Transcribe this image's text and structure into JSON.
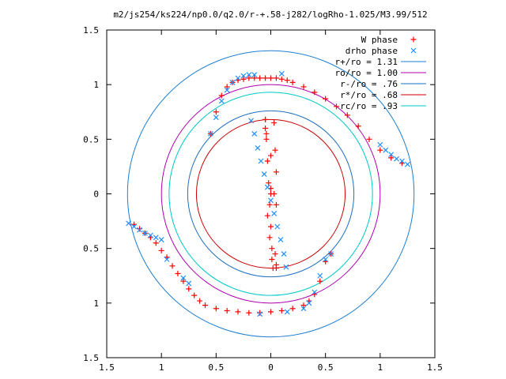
{
  "chart_data": {
    "type": "scatter",
    "title": "m2/js254/ks224/np0.0/q2.0/r-+.58-j282/logRho-1.025/M3.99/512",
    "xlim": [
      -1.5,
      1.5
    ],
    "ylim": [
      -1.5,
      1.5
    ],
    "xticks": [
      -1.5,
      -1,
      -0.5,
      0,
      0.5,
      1,
      1.5
    ],
    "yticks": [
      -1.5,
      -1,
      -0.5,
      0,
      0.5,
      1,
      1.5
    ],
    "xtick_labels": [
      "1.5",
      "1",
      "0.5",
      "0",
      "0.5",
      "1",
      "1.5"
    ],
    "ytick_labels": [
      "1.5",
      "1",
      "0.5",
      "0",
      "0.5",
      "1",
      "1.5"
    ],
    "grid": false,
    "legend_position": "top-right",
    "series": [
      {
        "name": "W phase",
        "marker": "plus",
        "color": "#ff0000",
        "x": [
          -0.05,
          -0.04,
          -0.03,
          -0.02,
          -0.01,
          0.0,
          0.01,
          0.02,
          0.03,
          0.04,
          0.05,
          -0.03,
          -0.01,
          0.01,
          0.03,
          0.05,
          -0.05,
          0.0,
          0.05,
          -0.04,
          0.04,
          -0.05,
          0.0,
          0.05,
          0.0,
          -0.55,
          -0.5,
          -0.45,
          -0.4,
          -0.35,
          -0.3,
          -0.25,
          -0.2,
          -0.15,
          -0.1,
          -0.05,
          0.0,
          0.05,
          0.1,
          0.15,
          0.2,
          0.3,
          0.4,
          0.5,
          0.6,
          0.7,
          0.8,
          0.9,
          1.0,
          1.1,
          1.2,
          -1.25,
          -1.2,
          -1.15,
          -1.1,
          -1.05,
          -1.0,
          -0.95,
          -0.9,
          -0.85,
          -0.8,
          -0.75,
          -0.7,
          -0.65,
          -0.6,
          -0.5,
          -0.4,
          -0.3,
          -0.2,
          -0.1,
          0.0,
          0.1,
          0.2,
          0.3,
          0.35,
          0.4,
          0.45,
          0.5,
          0.55
        ],
        "y": [
          0.68,
          0.5,
          0.3,
          0.1,
          -0.1,
          -0.3,
          -0.5,
          -0.68,
          0.65,
          0.4,
          0.2,
          -0.2,
          -0.4,
          -0.6,
          0.0,
          -0.1,
          0.6,
          0.05,
          -0.68,
          0.55,
          -0.55,
          0.68,
          0.0,
          -0.65,
          0.35,
          0.55,
          0.75,
          0.9,
          0.98,
          1.02,
          1.04,
          1.05,
          1.06,
          1.06,
          1.06,
          1.06,
          1.06,
          1.06,
          1.05,
          1.04,
          1.02,
          0.98,
          0.93,
          0.87,
          0.8,
          0.72,
          0.62,
          0.5,
          0.4,
          0.33,
          0.28,
          -0.28,
          -0.32,
          -0.36,
          -0.4,
          -0.45,
          -0.52,
          -0.58,
          -0.66,
          -0.73,
          -0.8,
          -0.87,
          -0.93,
          -0.98,
          -1.02,
          -1.05,
          -1.07,
          -1.08,
          -1.09,
          -1.09,
          -1.08,
          -1.07,
          -1.05,
          -1.02,
          -0.98,
          -0.92,
          -0.8,
          -0.62,
          -0.55
        ]
      },
      {
        "name": "drho phase",
        "marker": "cross",
        "color": "#1e90ff",
        "x": [
          -0.18,
          -0.15,
          -0.12,
          -0.09,
          -0.06,
          -0.03,
          0.0,
          0.03,
          0.06,
          0.09,
          0.12,
          0.14,
          -0.55,
          -0.5,
          -0.45,
          -0.4,
          -0.35,
          -0.3,
          -0.25,
          -0.2,
          -0.15,
          0.1,
          1.0,
          1.05,
          1.1,
          1.15,
          1.2,
          1.25,
          -1.3,
          -1.25,
          -1.2,
          -1.15,
          -1.1,
          -1.05,
          -1.0,
          -0.95,
          -0.8,
          -0.75,
          -0.1,
          0.15,
          0.3,
          0.35,
          0.4,
          0.45,
          0.5,
          0.55
        ],
        "y": [
          0.67,
          0.55,
          0.42,
          0.3,
          0.18,
          0.06,
          -0.06,
          -0.18,
          -0.3,
          -0.42,
          -0.55,
          -0.67,
          0.55,
          0.7,
          0.85,
          0.95,
          1.02,
          1.06,
          1.08,
          1.09,
          1.09,
          1.1,
          0.45,
          0.4,
          0.36,
          0.32,
          0.3,
          0.27,
          -0.27,
          -0.3,
          -0.33,
          -0.36,
          -0.38,
          -0.4,
          -0.42,
          -0.6,
          -0.77,
          -0.82,
          -1.1,
          -1.08,
          -1.05,
          -1.0,
          -0.9,
          -0.75,
          -0.6,
          -0.55
        ]
      }
    ],
    "circles": [
      {
        "name": "r+/ro = 1.31",
        "radius": 1.31,
        "color": "#1e7fd0"
      },
      {
        "name": "ro/ro = 1.00",
        "radius": 1.0,
        "color": "#b000b0"
      },
      {
        "name": "r-/ro = .76",
        "radius": 0.76,
        "color": "#1e6fc0"
      },
      {
        "name": "r*/ro = .68",
        "radius": 0.68,
        "color": "#cc0000"
      },
      {
        "name": "rc/ro = .93",
        "radius": 0.93,
        "color": "#00c8c8"
      }
    ]
  }
}
